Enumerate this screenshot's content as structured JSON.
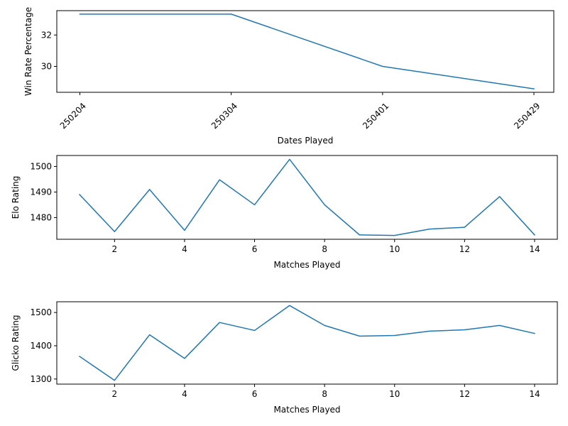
{
  "colors": {
    "line": "#1f77b4",
    "axis": "#000000",
    "background": "#ffffff"
  },
  "chart_data": [
    {
      "type": "line",
      "xlabel": "Dates Played",
      "ylabel": "Win Rate Percentage",
      "x_axis_type": "category",
      "x_tick_rotation_deg": -45,
      "categories": [
        "250204",
        "250304",
        "250401",
        "250429"
      ],
      "values": [
        33.33,
        33.33,
        30.0,
        28.57
      ],
      "ylim": [
        28.35,
        33.55
      ],
      "yticks": [
        30,
        32
      ],
      "grid": false,
      "legend": "none"
    },
    {
      "type": "line",
      "xlabel": "Matches Played",
      "ylabel": "Elo Rating",
      "x_axis_type": "numeric",
      "x": [
        1,
        2,
        3,
        4,
        5,
        6,
        7,
        8,
        9,
        10,
        11,
        12,
        13,
        14
      ],
      "values": [
        1489,
        1474.5,
        1491,
        1475,
        1494.8,
        1485,
        1502.8,
        1485,
        1473.2,
        1473,
        1475.5,
        1476.2,
        1488.2,
        1473.2
      ],
      "xlim": [
        0.35,
        14.65
      ],
      "ylim": [
        1471.5,
        1504.3
      ],
      "xticks": [
        2,
        4,
        6,
        8,
        10,
        12,
        14
      ],
      "yticks": [
        1480,
        1490,
        1500
      ],
      "grid": false,
      "legend": "none"
    },
    {
      "type": "line",
      "xlabel": "Matches Played",
      "ylabel": "Glicko Rating",
      "x_axis_type": "numeric",
      "x": [
        1,
        2,
        3,
        4,
        5,
        6,
        7,
        8,
        9,
        10,
        11,
        12,
        13,
        14
      ],
      "values": [
        1368,
        1296,
        1433,
        1362,
        1470,
        1446,
        1521,
        1461,
        1429,
        1431,
        1444,
        1448,
        1461,
        1437
      ],
      "xlim": [
        0.35,
        14.65
      ],
      "ylim": [
        1284.7,
        1532.3
      ],
      "xticks": [
        2,
        4,
        6,
        8,
        10,
        12,
        14
      ],
      "yticks": [
        1300,
        1400,
        1500
      ],
      "grid": false,
      "legend": "none"
    }
  ]
}
